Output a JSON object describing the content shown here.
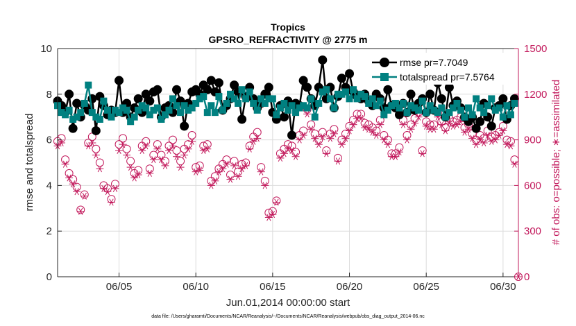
{
  "chart_data": {
    "type": "line",
    "title": "Tropics",
    "subtitle": "GPSRO_REFRACTIVITY @ 2775 m",
    "xlabel": "Jun.01,2014 00:00:00 start",
    "ylabel_left": "rmse and totalspread",
    "ylabel_right": "# of obs: o=possible; ∗=assimilated",
    "footnote": "data file: /Users/gharamti/Documents/NCAR/Reanalysis/~/Documents/NCAR/Reanalysis/webpub/obs_diag_output_2014-06.nc",
    "xlim": [
      1,
      31
    ],
    "ylim_left": [
      0,
      10
    ],
    "ylim_right": [
      0,
      1500
    ],
    "xtick_values": [
      5,
      10,
      15,
      20,
      25,
      30
    ],
    "xtick_labels": [
      "06/05",
      "06/10",
      "06/15",
      "06/20",
      "06/25",
      "06/30"
    ],
    "ytick_left": [
      "0",
      "2",
      "4",
      "6",
      "8",
      "10"
    ],
    "ytick_right": [
      "0",
      "300",
      "600",
      "900",
      "1200",
      "1500"
    ],
    "colors": {
      "rmse": "#000000",
      "totalspread": "#008080",
      "obs": "#c2185b",
      "axis": "#262626"
    },
    "legend": [
      "rmse pr=7.7049",
      "totalspread pr=7.5764"
    ],
    "x": [
      1.0,
      1.25,
      1.5,
      1.75,
      2.0,
      2.25,
      2.5,
      2.75,
      3.0,
      3.25,
      3.5,
      3.75,
      4.0,
      4.25,
      4.5,
      4.75,
      5.0,
      5.25,
      5.5,
      5.75,
      6.0,
      6.25,
      6.5,
      6.75,
      7.0,
      7.25,
      7.5,
      7.75,
      8.0,
      8.25,
      8.5,
      8.75,
      9.0,
      9.25,
      9.5,
      9.75,
      10.0,
      10.25,
      10.5,
      10.75,
      11.0,
      11.25,
      11.5,
      11.75,
      12.0,
      12.25,
      12.5,
      12.75,
      13.0,
      13.25,
      13.5,
      13.75,
      14.0,
      14.25,
      14.5,
      14.75,
      15.0,
      15.25,
      15.5,
      15.75,
      16.0,
      16.25,
      16.5,
      16.75,
      17.0,
      17.25,
      17.5,
      17.75,
      18.0,
      18.25,
      18.5,
      18.75,
      19.0,
      19.25,
      19.5,
      19.75,
      20.0,
      20.25,
      20.5,
      20.75,
      21.0,
      21.25,
      21.5,
      21.75,
      22.0,
      22.25,
      22.5,
      22.75,
      23.0,
      23.25,
      23.5,
      23.75,
      24.0,
      24.25,
      24.5,
      24.75,
      25.0,
      25.25,
      25.5,
      25.75,
      26.0,
      26.25,
      26.5,
      26.75,
      27.0,
      27.25,
      27.5,
      27.75,
      28.0,
      28.25,
      28.5,
      28.75,
      29.0,
      29.25,
      29.5,
      29.75,
      30.0,
      30.25,
      30.5,
      30.75
    ],
    "series": [
      {
        "name": "rmse",
        "values": [
          7.7,
          7.5,
          7.2,
          8.0,
          6.5,
          7.6,
          7.0,
          7.5,
          7.3,
          7.8,
          6.4,
          7.9,
          7.5,
          7.1,
          7.3,
          7.2,
          8.6,
          7.2,
          7.6,
          7.0,
          7.4,
          7.8,
          7.2,
          8.0,
          7.7,
          8.1,
          8.2,
          7.0,
          7.4,
          7.5,
          7.2,
          8.2,
          7.7,
          6.6,
          7.6,
          8.1,
          8.2,
          8.0,
          8.4,
          8.2,
          8.6,
          8.1,
          8.5,
          7.3,
          7.5,
          7.8,
          8.4,
          8.1,
          6.9,
          7.9,
          8.3,
          7.8,
          7.4,
          7.6,
          8.0,
          8.3,
          7.2,
          6.9,
          7.5,
          7.0,
          7.7,
          6.2,
          7.6,
          7.5,
          8.6,
          8.3,
          7.8,
          7.5,
          8.3,
          9.5,
          7.8,
          8.3,
          7.4,
          7.9,
          8.7,
          8.3,
          8.9,
          8.1,
          7.9,
          7.8,
          8.0,
          7.7,
          7.5,
          8.0,
          7.8,
          7.4,
          8.2,
          7.5,
          7.4,
          7.1,
          7.6,
          7.2,
          8.0,
          7.3,
          7.6,
          7.8,
          7.2,
          8.0,
          7.3,
          8.5,
          7.8,
          7.0,
          8.3,
          7.5,
          7.7,
          7.4,
          7.0,
          6.8,
          7.0,
          6.5,
          6.8,
          7.6,
          7.0,
          6.6,
          7.4,
          7.5,
          7.8,
          6.9,
          7.5,
          7.8
        ]
      },
      {
        "name": "totalspread",
        "values": [
          7.5,
          7.2,
          7.1,
          7.3,
          6.9,
          7.0,
          7.2,
          7.6,
          8.4,
          7.2,
          7.0,
          6.9,
          7.7,
          7.3,
          7.0,
          7.3,
          7.2,
          7.4,
          7.3,
          6.8,
          7.0,
          7.3,
          7.5,
          7.4,
          7.1,
          7.3,
          7.4,
          6.9,
          7.1,
          7.3,
          7.8,
          7.5,
          7.2,
          7.5,
          7.3,
          7.4,
          7.6,
          7.8,
          7.9,
          7.2,
          7.5,
          7.2,
          7.9,
          7.3,
          7.6,
          8.0,
          7.8,
          7.6,
          8.2,
          7.8,
          8.1,
          7.6,
          7.3,
          7.8,
          7.6,
          7.8,
          7.8,
          7.1,
          7.4,
          7.6,
          7.3,
          7.5,
          7.2,
          7.4,
          7.5,
          7.4,
          7.8,
          7.0,
          7.6,
          8.1,
          8.2,
          7.8,
          7.4,
          8.0,
          8.0,
          8.1,
          7.8,
          8.2,
          7.8,
          8.0,
          7.9,
          7.6,
          7.8,
          7.5,
          7.7,
          7.1,
          7.3,
          7.5,
          7.6,
          7.4,
          7.6,
          7.2,
          7.5,
          7.4,
          7.3,
          7.7,
          7.2,
          7.5,
          7.3,
          7.2,
          7.4,
          7.0,
          7.2,
          7.4,
          7.6,
          7.3,
          7.0,
          7.4,
          7.1,
          7.8,
          7.4,
          7.2,
          7.5,
          7.8,
          7.3,
          7.4,
          7.0,
          7.5,
          7.1,
          7.6
        ]
      },
      {
        "name": "obs_possible",
        "axis": "right",
        "values": [
          890,
          910,
          770,
          680,
          640,
          590,
          440,
          540,
          880,
          920,
          840,
          750,
          600,
          580,
          510,
          610,
          870,
          910,
          840,
          760,
          680,
          700,
          860,
          890,
          710,
          800,
          870,
          800,
          760,
          860,
          900,
          830,
          760,
          840,
          870,
          930,
          720,
          730,
          860,
          870,
          630,
          660,
          710,
          740,
          770,
          670,
          760,
          690,
          740,
          750,
          860,
          920,
          950,
          720,
          630,
          420,
          430,
          500,
          810,
          840,
          870,
          860,
          820,
          930,
          960,
          1100,
          1000,
          940,
          900,
          950,
          830,
          940,
          970,
          780,
          900,
          940,
          990,
          1030,
          1070,
          1070,
          1010,
          1000,
          980,
          960,
          1030,
          930,
          900,
          810,
          810,
          850,
          1030,
          930,
          1000,
          1040,
          1080,
          830,
          1020,
          1000,
          1000,
          1080,
          1020,
          980,
          1040,
          1020,
          1030,
          1050,
          980,
          1000,
          940,
          900,
          930,
          910,
          960,
          920,
          930,
          950,
          990,
          900,
          890,
          770
        ]
      },
      {
        "name": "obs_assimilated",
        "axis": "right",
        "values": [
          860,
          880,
          740,
          650,
          610,
          560,
          430,
          530,
          860,
          880,
          800,
          710,
          580,
          560,
          490,
          580,
          830,
          870,
          800,
          720,
          650,
          670,
          830,
          860,
          680,
          770,
          840,
          770,
          730,
          830,
          860,
          790,
          720,
          800,
          840,
          890,
          690,
          700,
          830,
          840,
          600,
          630,
          690,
          710,
          740,
          640,
          730,
          660,
          710,
          730,
          840,
          890,
          910,
          690,
          600,
          390,
          410,
          490,
          780,
          810,
          840,
          830,
          790,
          900,
          930,
          1070,
          970,
          910,
          870,
          920,
          810,
          910,
          940,
          760,
          870,
          910,
          960,
          1000,
          1040,
          1040,
          980,
          970,
          950,
          930,
          1000,
          900,
          870,
          790,
          790,
          820,
          1000,
          900,
          970,
          1010,
          1050,
          810,
          990,
          970,
          970,
          1050,
          1000,
          960,
          1010,
          990,
          1000,
          1020,
          950,
          970,
          910,
          870,
          900,
          880,
          930,
          890,
          900,
          930,
          960,
          870,
          860,
          740
        ]
      }
    ]
  }
}
